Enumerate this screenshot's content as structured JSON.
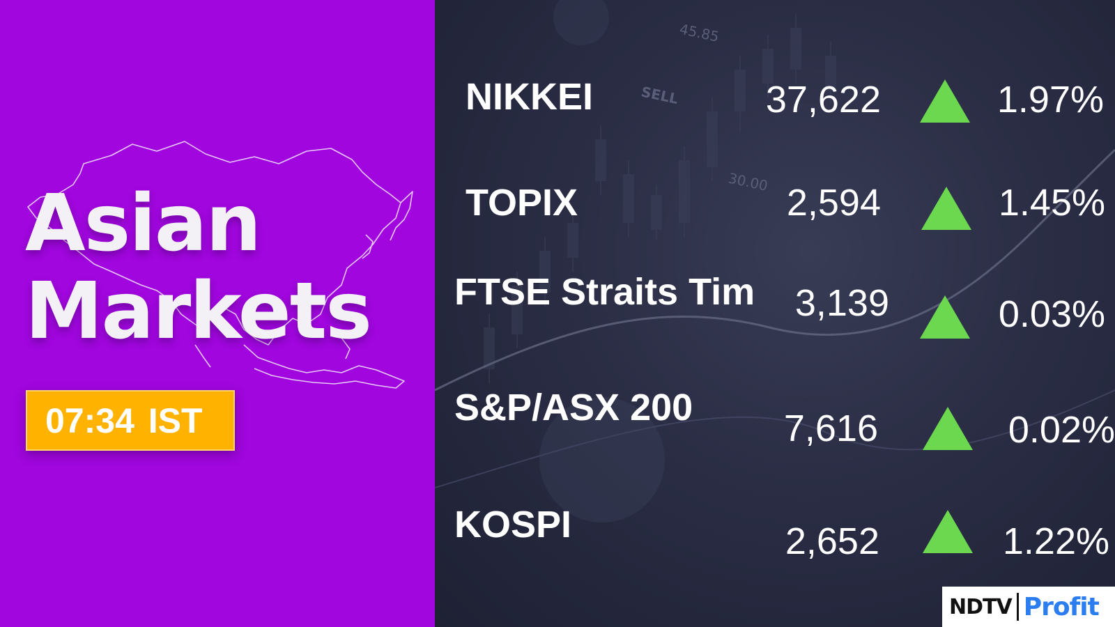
{
  "headline": {
    "line1": "Asian",
    "line2": "Markets"
  },
  "time_badge": "07:34 IST",
  "markets": [
    {
      "name": "NIKKEI",
      "value": "37,622",
      "direction": "up",
      "change": "1.97%"
    },
    {
      "name": "TOPIX",
      "value": "2,594",
      "direction": "up",
      "change": "1.45%"
    },
    {
      "name": "FTSE Straits Tim",
      "value": "3,139",
      "direction": "up",
      "change": "0.03%"
    },
    {
      "name": "S&P/ASX 200",
      "value": "7,616",
      "direction": "up",
      "change": "0.02%"
    },
    {
      "name": "KOSPI",
      "value": "2,652",
      "direction": "up",
      "change": "1.22%"
    }
  ],
  "background_labels": {
    "price_top": "45.85",
    "sell": "SELL",
    "price_mid": "30.00"
  },
  "logo": {
    "brand": "NDTV",
    "product": "Profit"
  },
  "colors": {
    "left_panel": "#a006dd",
    "badge": "#ffb300",
    "up_arrow": "#6bd84f",
    "profit_blue": "#2b7df0",
    "dark_bg": "#23263a"
  }
}
